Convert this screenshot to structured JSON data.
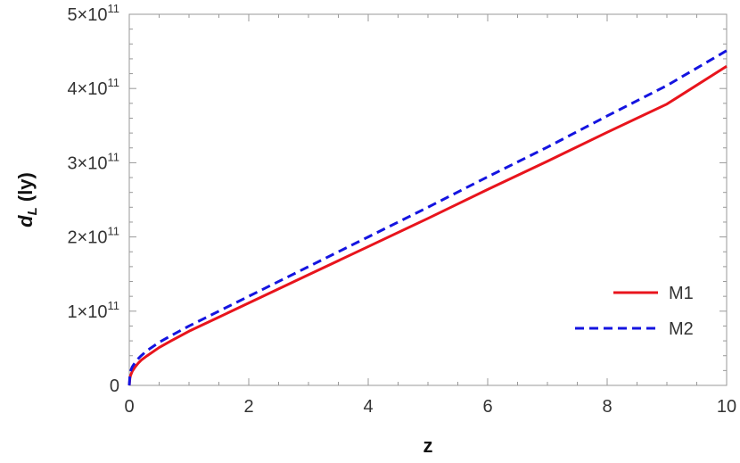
{
  "chart_data": {
    "type": "line",
    "title": "",
    "xlabel": "z",
    "ylabel": "d_L (ly)",
    "ylabel_main": "d",
    "ylabel_sub": "L",
    "ylabel_rest": " (ly)",
    "xlim": [
      0,
      10
    ],
    "ylim": [
      0,
      500000000000
    ],
    "grid": false,
    "legend_position": "bottom-right",
    "x_ticks": [
      0,
      2,
      4,
      6,
      8,
      10
    ],
    "x_tick_labels": [
      "0",
      "2",
      "4",
      "6",
      "8",
      "10"
    ],
    "y_ticks": [
      0,
      100000000000,
      200000000000,
      300000000000,
      400000000000,
      500000000000
    ],
    "y_tick_labels": [
      {
        "mantissa": "0",
        "exp": ""
      },
      {
        "mantissa": "1×10",
        "exp": "11"
      },
      {
        "mantissa": "2×10",
        "exp": "11"
      },
      {
        "mantissa": "3×10",
        "exp": "11"
      },
      {
        "mantissa": "4×10",
        "exp": "11"
      },
      {
        "mantissa": "5×10",
        "exp": "11"
      }
    ],
    "series": [
      {
        "name": "M1",
        "color": "#e8141c",
        "dash": "solid",
        "x": [
          0,
          0.01,
          0.02,
          0.05,
          0.1,
          0.15,
          0.2,
          0.3,
          0.5,
          0.7,
          1,
          1.5,
          2,
          3,
          4,
          5,
          6,
          7,
          8,
          9,
          10
        ],
        "y": [
          0,
          9000000000,
          13000000000,
          19000000000,
          25000000000,
          30000000000,
          34000000000,
          40000000000,
          51000000000,
          60000000000,
          73000000000,
          92000000000,
          111000000000,
          149000000000,
          187000000000,
          225000000000,
          264000000000,
          302000000000,
          341000000000,
          379000000000,
          430000000000
        ]
      },
      {
        "name": "M2",
        "color": "#1414e0",
        "dash": "dashed",
        "x": [
          0,
          0.01,
          0.02,
          0.05,
          0.1,
          0.15,
          0.2,
          0.3,
          0.5,
          0.7,
          1,
          1.5,
          2,
          3,
          4,
          5,
          6,
          7,
          8,
          9,
          10
        ],
        "y": [
          0,
          13000000000,
          19000000000,
          25000000000,
          31000000000,
          36000000000,
          40000000000,
          47000000000,
          58000000000,
          67000000000,
          80000000000,
          100000000000,
          120000000000,
          160000000000,
          200000000000,
          240000000000,
          281000000000,
          321000000000,
          363000000000,
          404000000000,
          451000000000
        ]
      }
    ]
  }
}
